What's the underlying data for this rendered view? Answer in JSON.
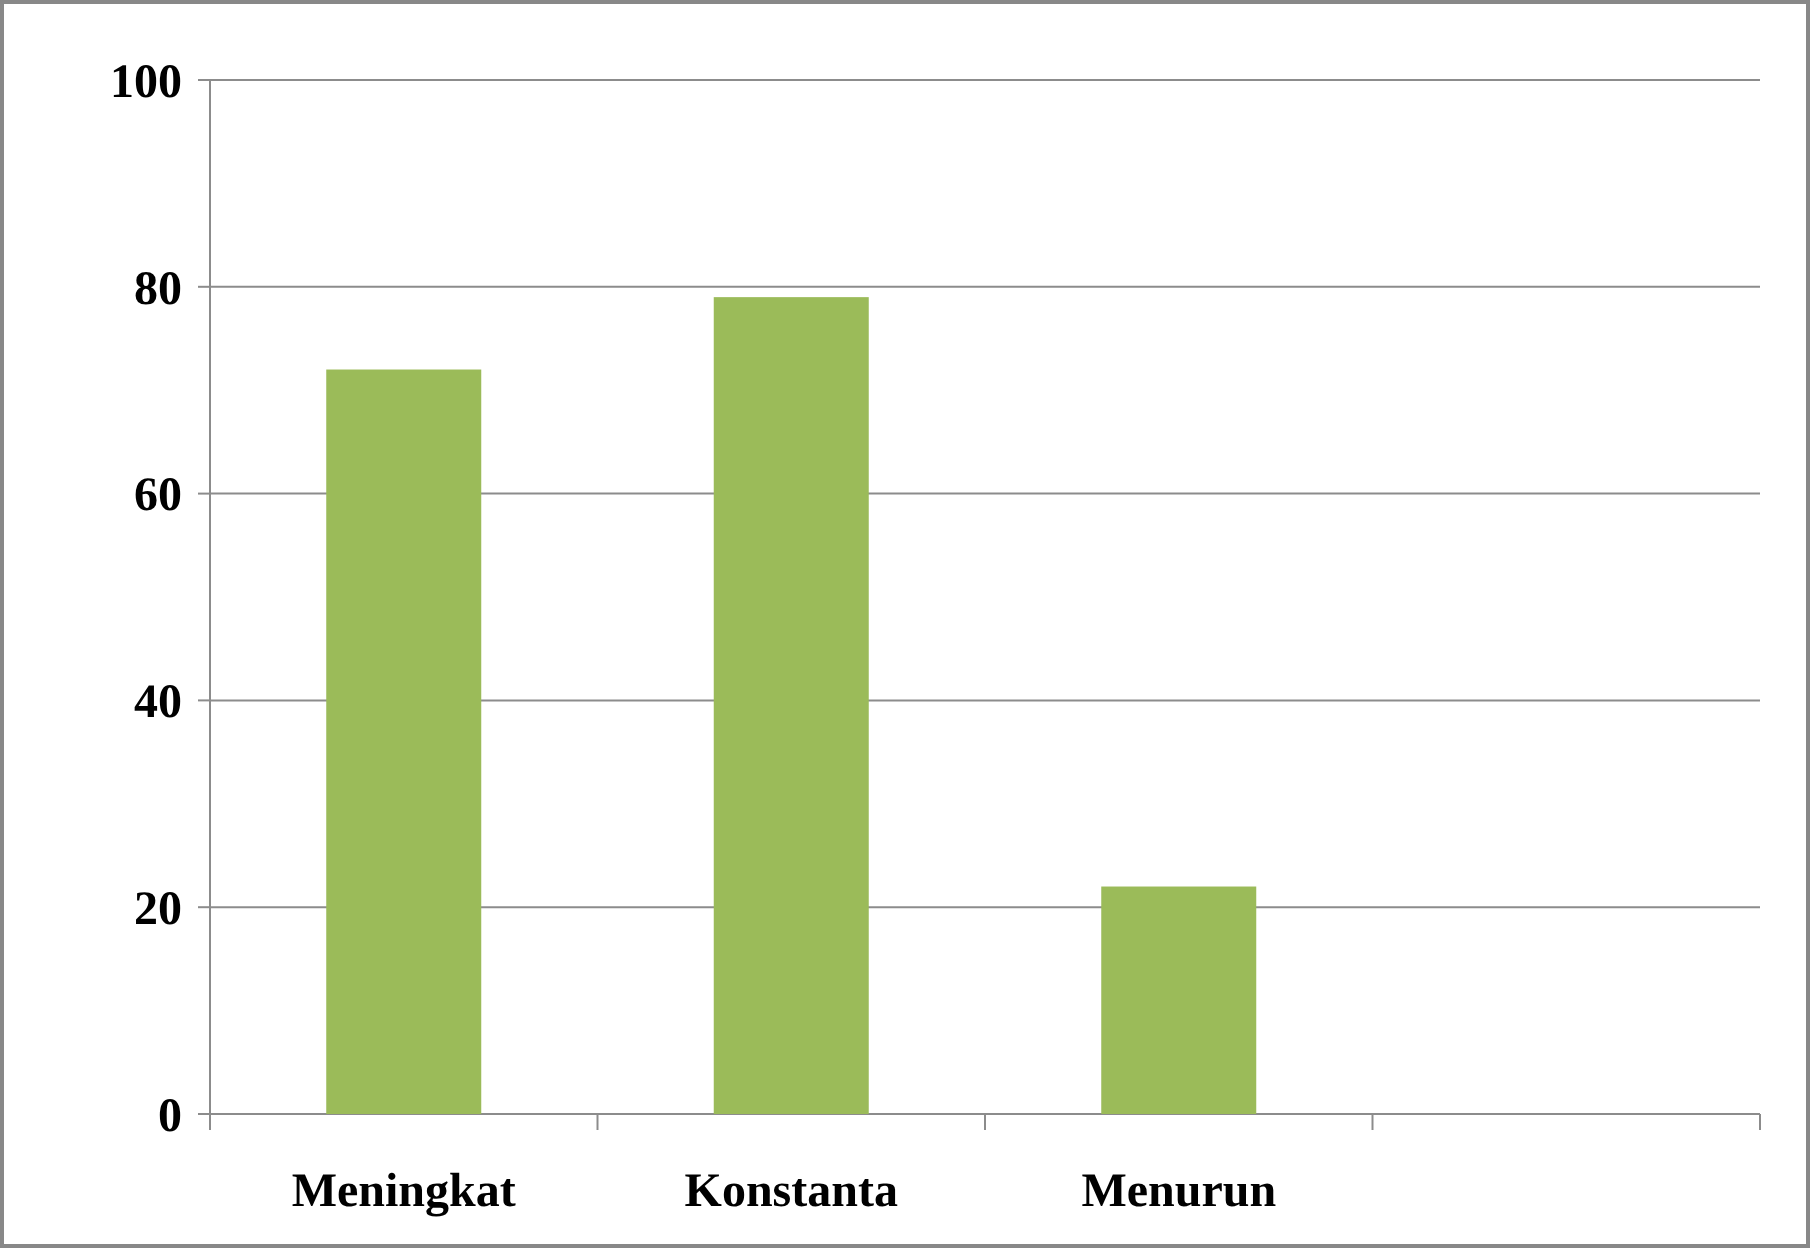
{
  "chart_data": {
    "type": "bar",
    "categories": [
      "Meningkat",
      "Konstanta",
      "Menurun",
      null
    ],
    "values": [
      72,
      79,
      22,
      null
    ],
    "color": "#9bbb59",
    "ylim": [
      0,
      100
    ],
    "yticks": [
      0,
      20,
      40,
      60,
      80,
      100
    ],
    "grid": "y"
  }
}
